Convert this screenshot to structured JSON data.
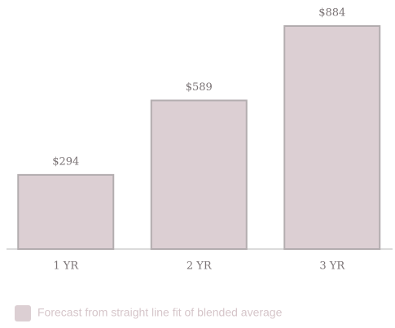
{
  "chart_data": {
    "type": "bar",
    "categories": [
      "1 YR",
      "2 YR",
      "3 YR"
    ],
    "series": [
      {
        "name": "Forecast from straight line fit of blended average",
        "color": "#dccfd3",
        "values": [
          294,
          589,
          884
        ],
        "value_labels": [
          "$294",
          "$589",
          "$884"
        ]
      }
    ],
    "legend": "bottom-left"
  }
}
